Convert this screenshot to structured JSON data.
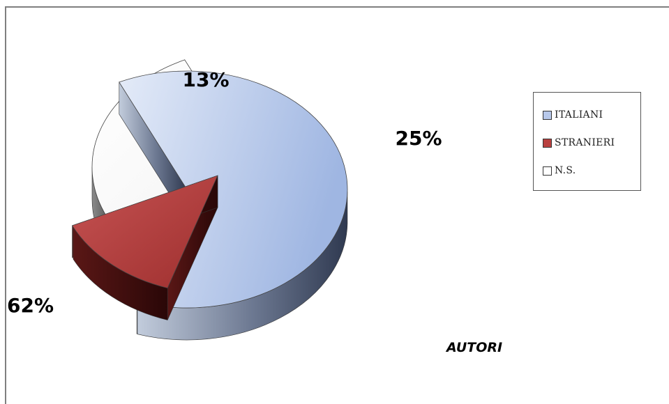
{
  "chart_data": {
    "type": "pie",
    "style": "3d-exploded",
    "title": "AUTORI",
    "legend_position": "right",
    "slices": [
      {
        "name": "ITALIANI",
        "value": 62,
        "label": "62%",
        "color": "#b7c8ea"
      },
      {
        "name": "STRANIERI",
        "value": 13,
        "label": "13%",
        "color": "#b9403f"
      },
      {
        "name": "N.S.",
        "value": 25,
        "label": "25%",
        "color": "#ffffff"
      }
    ]
  }
}
